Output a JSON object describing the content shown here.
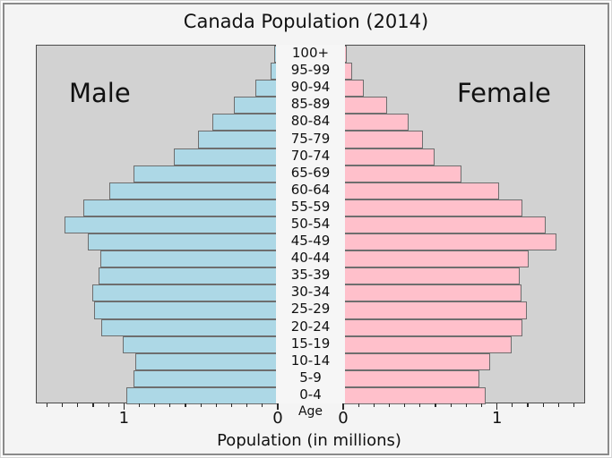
{
  "title": "Canada Population (2014)",
  "panel_labels": {
    "male": "Male",
    "female": "Female"
  },
  "axis": {
    "xlabel": "Population (in millions)",
    "age_label": "Age",
    "male_ticks": {
      "one": "1",
      "zero": "0"
    },
    "female_ticks": {
      "zero": "0",
      "one": "1"
    }
  },
  "colors": {
    "male_bar": "#add8e6",
    "female_bar": "#ffc0cb",
    "bar_edge": "#6e6e6e",
    "panel_bg": "#d2d2d2",
    "figure_bg": "#f4f4f4",
    "frame_border": "#8a8a8a",
    "text": "#111111"
  },
  "chart_data": {
    "type": "bar",
    "variant": "population-pyramid",
    "title": "Canada Population (2014)",
    "xlabel": "Population (in millions)",
    "ylabel": "Age",
    "legend_position": "none",
    "grid": false,
    "age_groups_top_to_bottom": [
      "100+",
      "95-99",
      "90-94",
      "85-89",
      "80-84",
      "75-79",
      "70-74",
      "65-69",
      "60-64",
      "55-59",
      "50-54",
      "45-49",
      "40-44",
      "35-39",
      "30-34",
      "25-29",
      "20-24",
      "15-19",
      "10-14",
      "5-9",
      "0-4"
    ],
    "series": [
      {
        "name": "Male",
        "side": "left",
        "values_top_to_bottom": [
          0.02,
          0.04,
          0.14,
          0.28,
          0.42,
          0.51,
          0.67,
          0.93,
          1.09,
          1.26,
          1.38,
          1.23,
          1.15,
          1.16,
          1.2,
          1.19,
          1.14,
          1.0,
          0.92,
          0.93,
          0.98
        ]
      },
      {
        "name": "Female",
        "side": "right",
        "values_top_to_bottom": [
          0.02,
          0.05,
          0.13,
          0.28,
          0.42,
          0.51,
          0.59,
          0.76,
          1.01,
          1.16,
          1.31,
          1.38,
          1.2,
          1.14,
          1.15,
          1.19,
          1.16,
          1.09,
          0.95,
          0.88,
          0.92
        ]
      }
    ],
    "xlim_each_side": [
      0,
      1.57
    ],
    "major_ticks": [
      0,
      1
    ],
    "minor_tick_step": 0.1
  }
}
